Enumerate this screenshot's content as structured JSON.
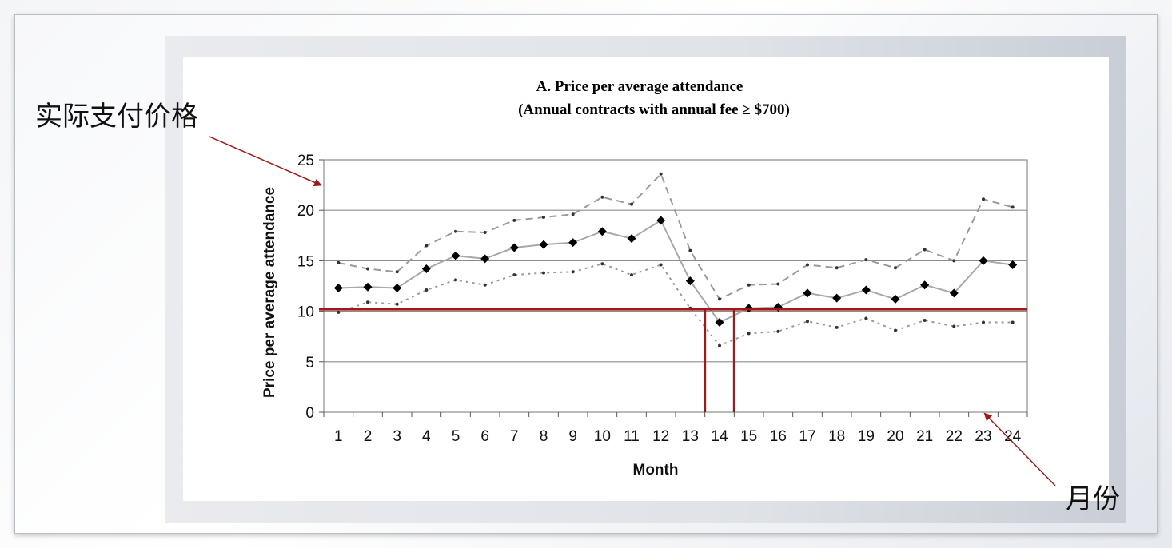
{
  "callouts": {
    "left_label": "实际支付价格",
    "right_label": "月份"
  },
  "colors": {
    "accent_red": "#a01818",
    "series_line": "#a9a9a9",
    "marker": "#000000"
  },
  "chart_data": {
    "type": "line",
    "title": "A.  Price per average attendance",
    "subtitle": "(Annual contracts with annual fee ≥ $700)",
    "xlabel": "Month",
    "ylabel": "Price per average attendance",
    "categories": [
      "1",
      "2",
      "3",
      "4",
      "5",
      "6",
      "7",
      "8",
      "9",
      "10",
      "11",
      "12",
      "13",
      "14",
      "15",
      "16",
      "17",
      "18",
      "19",
      "20",
      "21",
      "22",
      "23",
      "24"
    ],
    "ylim": [
      0,
      25
    ],
    "yticks": [
      "0",
      "5",
      "10",
      "15",
      "20",
      "25"
    ],
    "grid": true,
    "series": [
      {
        "name": "",
        "style": "solid-diamond",
        "values": [
          12.3,
          12.4,
          12.3,
          14.2,
          15.5,
          15.2,
          16.3,
          16.6,
          16.8,
          17.9,
          17.2,
          19.0,
          13.0,
          8.9,
          10.3,
          10.4,
          11.8,
          11.3,
          12.1,
          11.2,
          12.6,
          11.8,
          15.0,
          14.6
        ]
      },
      {
        "name": "",
        "style": "dashed",
        "values": [
          14.8,
          14.2,
          13.9,
          16.5,
          17.9,
          17.8,
          19.0,
          19.3,
          19.6,
          21.3,
          20.6,
          23.6,
          16.0,
          11.2,
          12.6,
          12.7,
          14.6,
          14.3,
          15.1,
          14.3,
          16.1,
          15.0,
          21.1,
          20.3
        ]
      },
      {
        "name": "",
        "style": "dotted",
        "values": [
          9.9,
          10.9,
          10.7,
          12.1,
          13.1,
          12.6,
          13.6,
          13.8,
          13.9,
          14.7,
          13.6,
          14.6,
          10.3,
          6.6,
          7.8,
          8.0,
          9.0,
          8.4,
          9.3,
          8.1,
          9.1,
          8.5,
          8.9,
          8.9
        ]
      }
    ],
    "annotations": {
      "horizontal_line_y": 10.2,
      "vertical_lines_x": [
        13.5,
        14.5
      ],
      "arrow_left_target": {
        "x": 0,
        "y": 22.5
      },
      "arrow_right_target": {
        "x": 23,
        "y": 0
      }
    }
  }
}
